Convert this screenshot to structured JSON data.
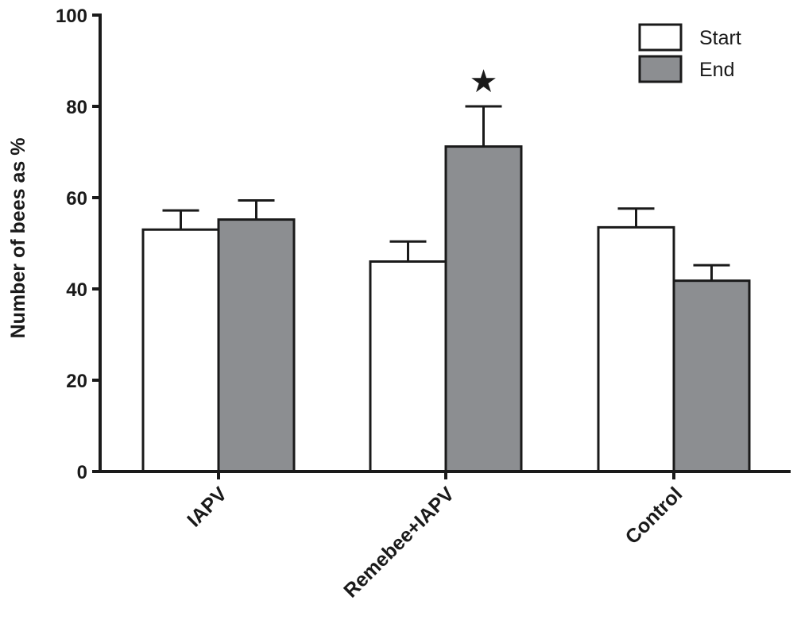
{
  "chart_data": {
    "type": "bar",
    "title": "",
    "xlabel": "",
    "ylabel": "Number of bees as %",
    "ylim": [
      0,
      100
    ],
    "yticks": [
      0,
      20,
      40,
      60,
      80,
      100
    ],
    "categories": [
      "IAPV",
      "Remebee+IAPV",
      "Control"
    ],
    "series": [
      {
        "name": "Start",
        "color": "#ffffff",
        "values": [
          53,
          46,
          53.5
        ],
        "errors": [
          4.2,
          4.4,
          4.1
        ]
      },
      {
        "name": "End",
        "color": "#8c8e91",
        "values": [
          55.2,
          71.2,
          41.8
        ],
        "errors": [
          4.2,
          8.8,
          3.4
        ]
      }
    ],
    "annotations": [
      {
        "category": 1,
        "series": 1,
        "symbol": "★"
      }
    ],
    "grid": false,
    "legend_position": "top-right"
  }
}
